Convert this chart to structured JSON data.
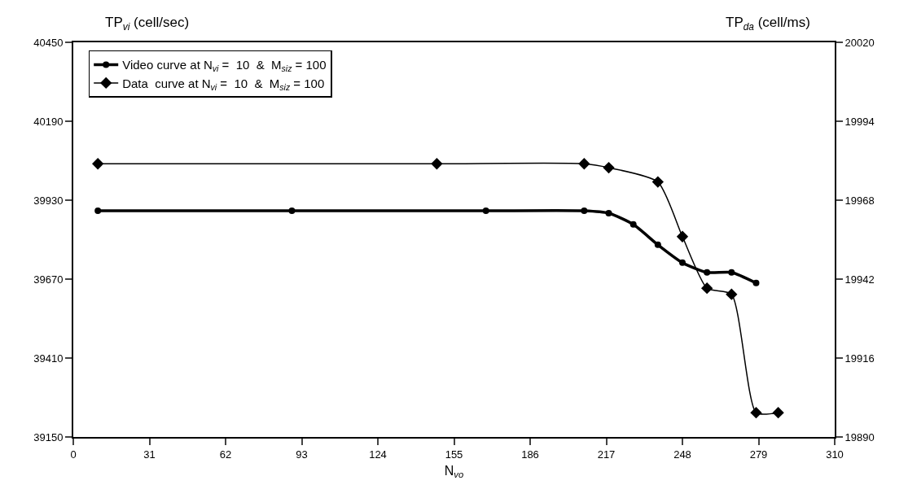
{
  "chart_data": {
    "type": "line",
    "xlabel": "N$_{vo}$",
    "ylabel": "TP$_{vi}$ (cell/sec)",
    "y2label": "TP$_{da}$ (cell/ms)",
    "xlim": [
      0,
      310
    ],
    "xticks": [
      0,
      31,
      62,
      93,
      124,
      155,
      186,
      217,
      248,
      279,
      310
    ],
    "ylim": [
      39150,
      40450
    ],
    "yticks": [
      39150,
      39410,
      39670,
      39930,
      40190,
      40450
    ],
    "y2lim": [
      19890,
      20020
    ],
    "y2ticks": [
      19890,
      19916,
      19942,
      19968,
      19994,
      20020
    ],
    "grid": false,
    "legend": "top left",
    "series": [
      {
        "name": "Video curve at N$_{vi}$ =  10  &  M$_{siz}$ = 100",
        "color": "#000000",
        "marker": "circle",
        "x": [
          10,
          89,
          168,
          208,
          218,
          228,
          238,
          248,
          258,
          268,
          278
        ],
        "values": [
          39895,
          39895,
          39895,
          39895,
          39887,
          39850,
          39783,
          39724,
          39692,
          39692,
          39657
        ]
      },
      {
        "name": "Data  curve at N$_{vi}$ =  10  &  M$_{siz}$ = 100",
        "color": "#000000",
        "marker": "diamond",
        "axis": "y2",
        "x": [
          10,
          148,
          208,
          218,
          238,
          248,
          258,
          268,
          278,
          287
        ],
        "values": [
          19980,
          19980,
          19980,
          19978.7,
          19974,
          19956,
          19939,
          19937,
          19898,
          19898
        ]
      }
    ]
  }
}
